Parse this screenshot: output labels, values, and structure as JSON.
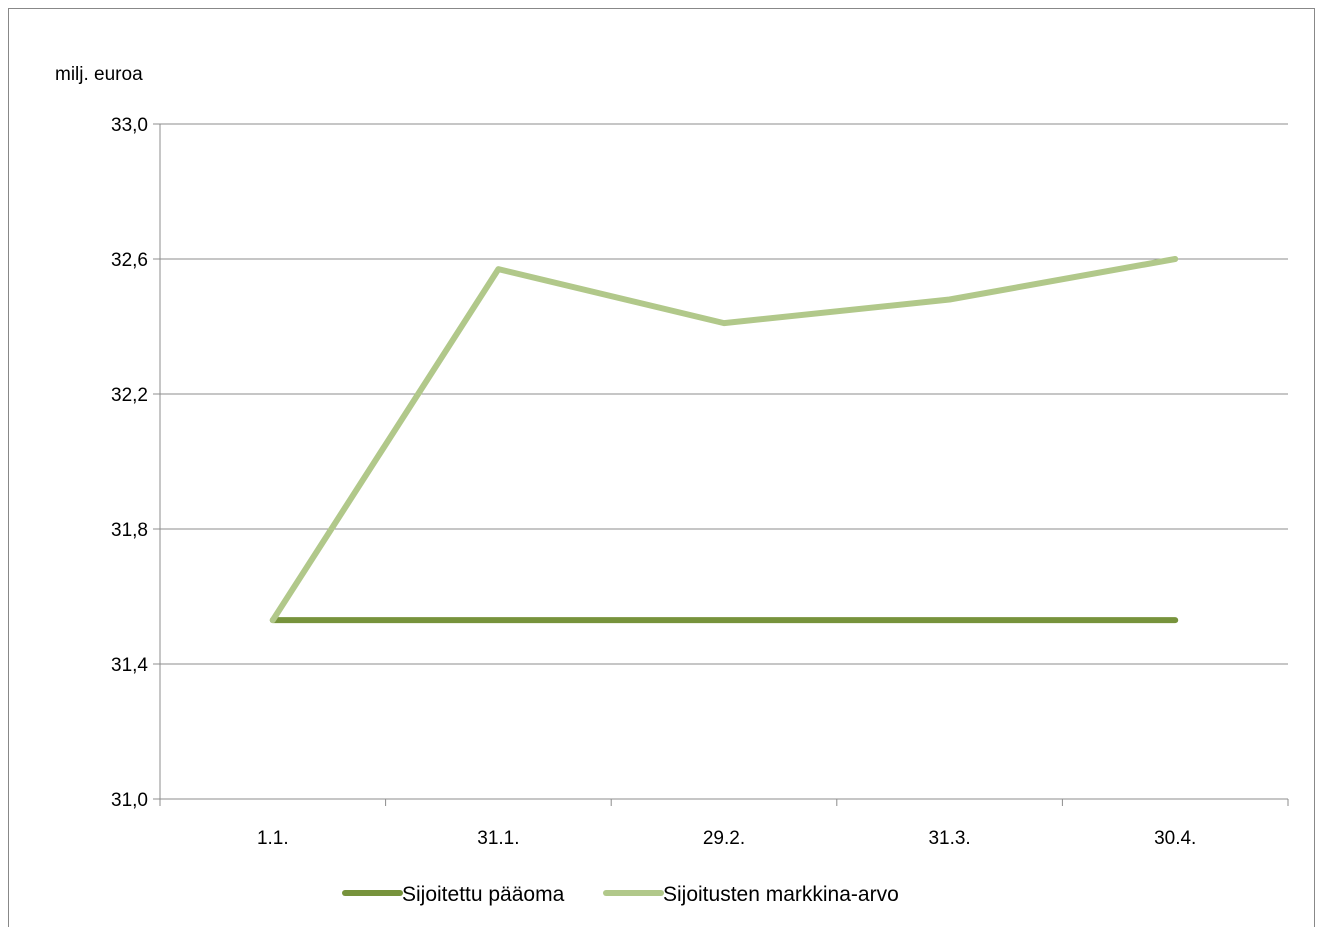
{
  "chart_data": {
    "type": "line",
    "ylabel": "milj. euroa",
    "ylim": [
      31.0,
      33.0
    ],
    "yticks": [
      "31,0",
      "31,4",
      "31,8",
      "32,2",
      "32,6",
      "33,0"
    ],
    "ytick_values": [
      31.0,
      31.4,
      31.8,
      32.2,
      32.6,
      33.0
    ],
    "categories": [
      "1.1.",
      "31.1.",
      "29.2.",
      "31.3.",
      "30.4."
    ],
    "grid": true,
    "legend_position": "bottom",
    "series": [
      {
        "name": "Sijoitettu pääoma",
        "values": [
          31.53,
          31.53,
          31.53,
          31.53,
          31.53
        ],
        "color": "#77933c"
      },
      {
        "name": "Sijoitusten markkina-arvo",
        "values": [
          31.53,
          32.57,
          32.41,
          32.48,
          32.6
        ],
        "color": "#b1c88a"
      }
    ]
  }
}
